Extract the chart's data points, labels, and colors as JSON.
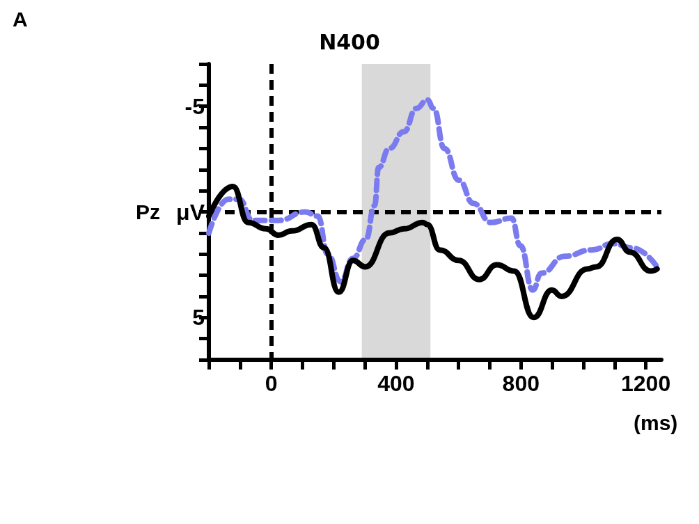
{
  "chart_data": {
    "type": "line",
    "title": "N400",
    "xlabel": "(ms)",
    "annotations": [
      "A"
    ],
    "xlim": [
      -200,
      1250
    ],
    "xticks": [
      {
        "value": -200,
        "label": null
      },
      {
        "value": -100,
        "label": null
      },
      0,
      {
        "value": 100,
        "label": null
      },
      {
        "value": 200,
        "label": null
      },
      {
        "value": 300,
        "label": null
      },
      400,
      {
        "value": 500,
        "label": null
      },
      {
        "value": 600,
        "label": null
      },
      {
        "value": 700,
        "label": null
      },
      800,
      {
        "value": 900,
        "label": null
      },
      {
        "value": 1000,
        "label": null
      },
      {
        "value": 1100,
        "label": null
      },
      1200
    ],
    "ylim": [
      7,
      -7
    ],
    "yticks": [
      {
        "value": -7,
        "label": null
      },
      {
        "value": -6,
        "label": null
      },
      -5,
      {
        "value": -4,
        "label": null
      },
      {
        "value": -3,
        "label": null
      },
      {
        "value": -2,
        "label": null
      },
      {
        "value": -1,
        "label": null
      },
      {
        "value": 0,
        "label": "μV"
      },
      {
        "value": 1,
        "label": null
      },
      {
        "value": 2,
        "label": null
      },
      {
        "value": 3,
        "label": null
      },
      {
        "value": 4,
        "label": null
      },
      5,
      {
        "value": 6,
        "label": null
      },
      {
        "value": 7,
        "label": null
      }
    ],
    "grid": false,
    "marker": "none",
    "ref_lines": [
      {
        "axis": "x",
        "value": 0,
        "line_style": "dashed",
        "color": "#000000"
      },
      {
        "axis": "y",
        "value": 0,
        "label": "Pz",
        "line_style": "dashed",
        "color": "#000000"
      }
    ],
    "bands": [
      {
        "axis": "x",
        "from": 290,
        "to": 510,
        "color": "#d9d9d9"
      }
    ],
    "series": [
      {
        "color": "#000000",
        "line_style": "solid",
        "x": [
          -200,
          -123,
          -74,
          -17,
          23,
          66,
          129,
          169,
          216,
          262,
          301,
          378,
          425,
          486,
          500,
          540,
          601,
          666,
          723,
          778,
          841,
          899,
          930,
          1013,
          1041,
          1108,
          1149,
          1216,
          1236
        ],
        "values": [
          0.2,
          -1.2,
          0.5,
          0.8,
          1.1,
          0.9,
          0.6,
          1.7,
          3.8,
          2.3,
          2.6,
          1.0,
          0.8,
          0.5,
          0.6,
          1.8,
          2.3,
          3.2,
          2.5,
          2.8,
          5.0,
          3.7,
          4.0,
          2.7,
          2.6,
          1.3,
          1.9,
          2.8,
          2.7
        ]
      },
      {
        "color": "#7b7bf0",
        "line_style": "dashed",
        "x": [
          -200,
          -137,
          -103,
          -60,
          -17,
          25,
          108,
          149,
          181,
          222,
          262,
          303,
          331,
          344,
          378,
          425,
          465,
          500,
          520,
          555,
          601,
          648,
          703,
          770,
          798,
          838,
          865,
          940,
          1027,
          1094,
          1155,
          1236
        ],
        "values": [
          1.0,
          -0.6,
          -0.6,
          0.4,
          0.4,
          0.4,
          0.0,
          0.2,
          2.0,
          3.3,
          2.2,
          1.3,
          -0.3,
          -2.1,
          -3.0,
          -3.8,
          -4.9,
          -5.3,
          -4.9,
          -3.0,
          -1.5,
          -0.4,
          0.5,
          0.3,
          1.6,
          3.7,
          2.9,
          2.1,
          1.8,
          1.5,
          1.7,
          2.6
        ]
      }
    ]
  }
}
